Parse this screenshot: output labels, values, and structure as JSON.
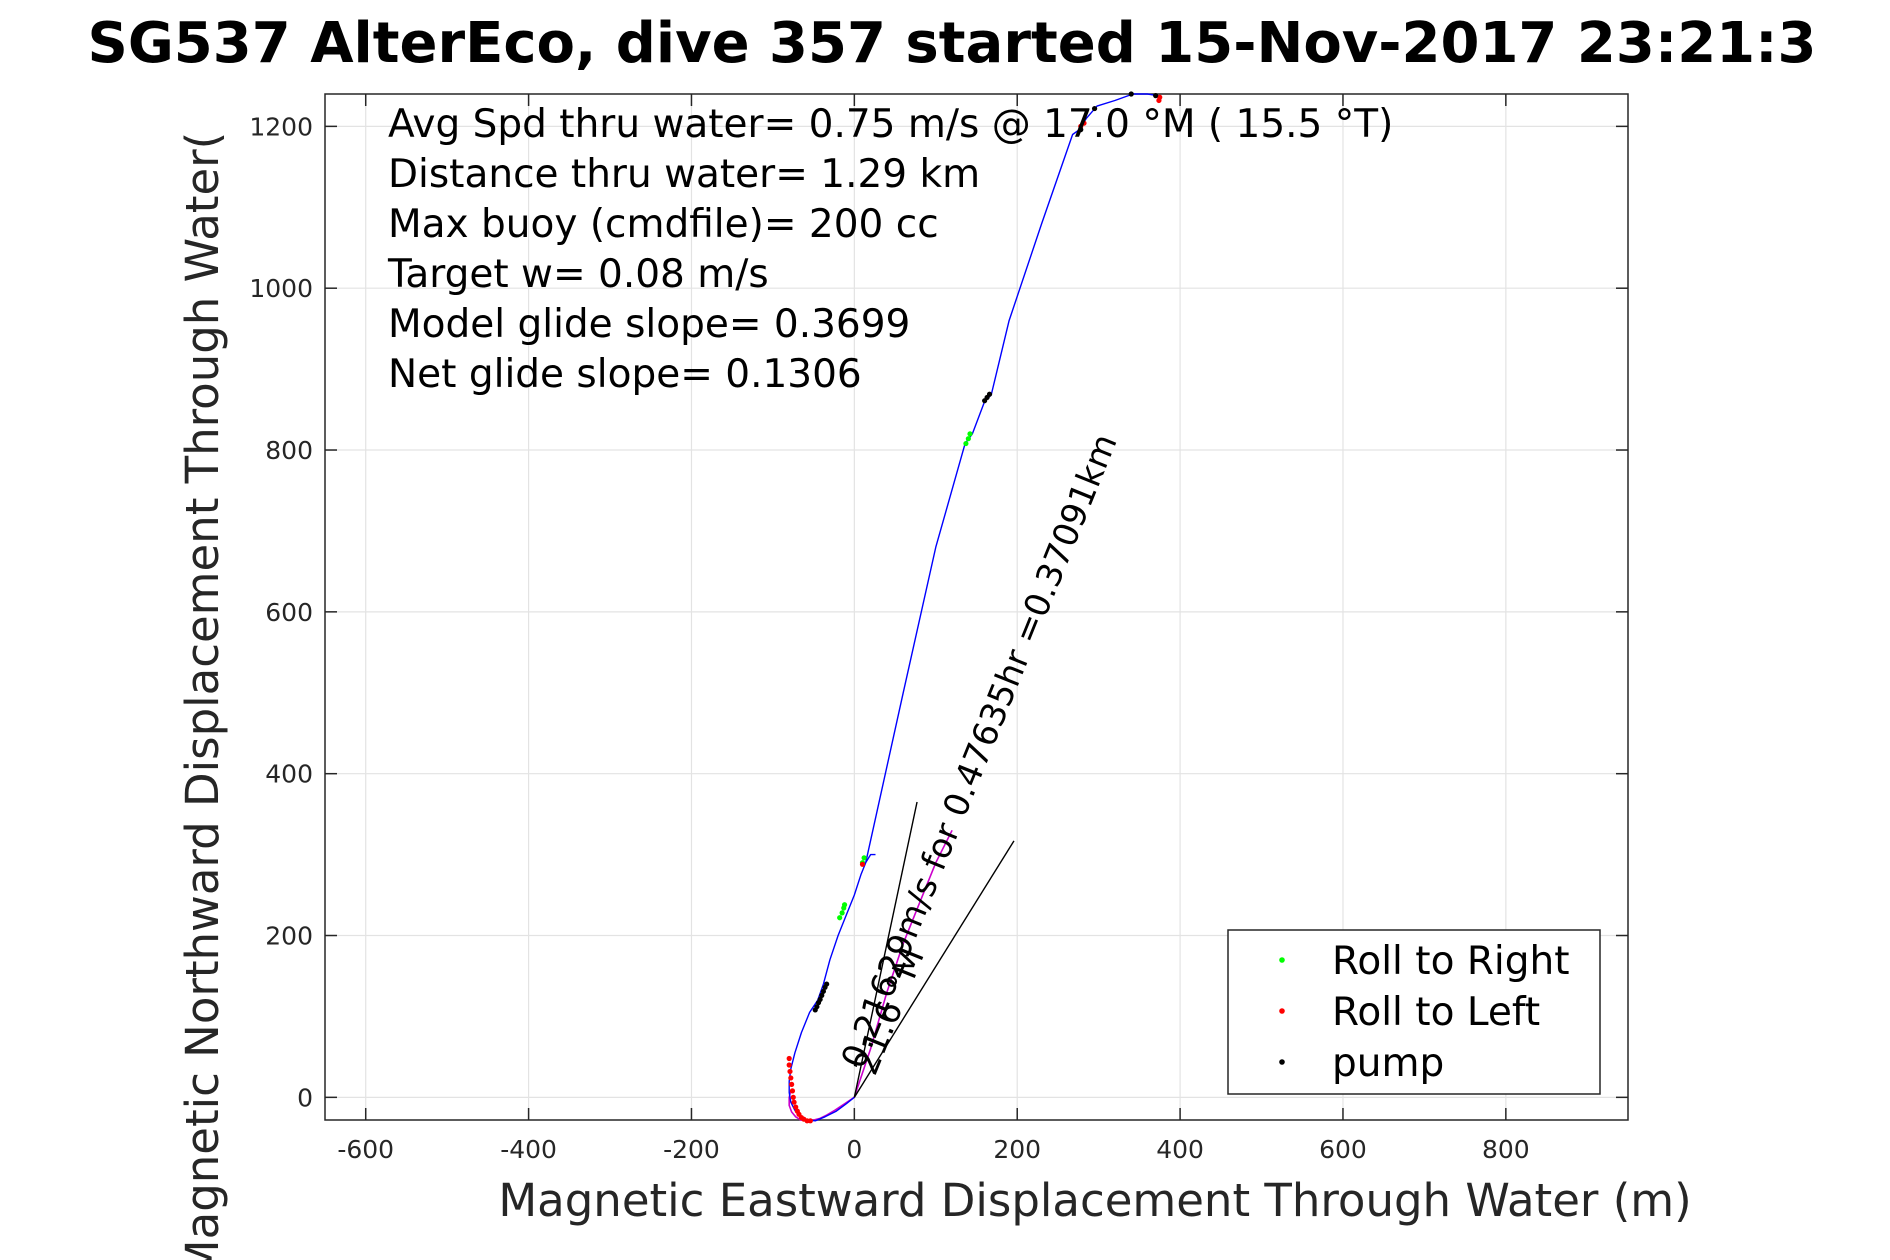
{
  "chart_data": {
    "type": "scatter",
    "title": "SG537 AlterEco, dive 357 started 15-Nov-2017 23:21:3",
    "xlabel": "Magnetic Eastward Displacement Through Water (m)",
    "ylabel": "Magnetic Northward Displacement Through Water(",
    "xlim": [
      -650,
      950
    ],
    "ylim": [
      -28,
      1240
    ],
    "x_ticks": [
      -600,
      -400,
      -200,
      0,
      200,
      400,
      600,
      800
    ],
    "y_ticks": [
      0,
      200,
      400,
      600,
      800,
      1000,
      1200
    ],
    "grid": true,
    "annotations": [
      "Avg Spd thru water=  0.75 m/s @  17.0 °M ( 15.5 °T)",
      "Distance thru water=  1.29 km",
      "Max buoy (cmdfile)= 200 cc",
      "Target w= 0.08 m/s",
      "Model glide slope= 0.3699",
      "Net glide slope= 0.1306"
    ],
    "rotated_labels": [
      {
        "text": "21.6 °M",
        "x": 25,
        "y": 25,
        "angle_deg": 68
      },
      {
        "text": "0.21629m/s for 0.47635hr =0.37091km",
        "x": 10,
        "y": 33,
        "angle_deg": 68
      }
    ],
    "legend": {
      "placement": "bottom-right",
      "entries": [
        {
          "label": "Roll to Right",
          "color": "#00ff00"
        },
        {
          "label": "Roll to Left",
          "color": "#ff0000"
        },
        {
          "label": "pump",
          "color": "#000000"
        }
      ]
    },
    "track": {
      "color": "#0000ff",
      "x": [
        0,
        -10,
        -22,
        -36,
        -48,
        -58,
        -66,
        -73,
        -78,
        -80,
        -80,
        -78,
        -73,
        -65,
        -55,
        -45,
        -38,
        -30,
        -20,
        -10,
        0,
        8,
        14,
        20,
        26
      ],
      "y": [
        0,
        -8,
        -17,
        -24,
        -29,
        -28,
        -24,
        -16,
        -6,
        6,
        20,
        35,
        55,
        80,
        105,
        120,
        140,
        170,
        200,
        225,
        250,
        275,
        290,
        300,
        300
      ]
    },
    "track_magenta": {
      "color": "#cc00cc",
      "x": [
        -78,
        -80,
        -80,
        -77,
        -72,
        -66,
        -58,
        -50,
        -42,
        -34,
        -24,
        -12,
        0,
        20,
        40,
        60,
        80,
        100,
        120
      ],
      "y": [
        8,
        0,
        -10,
        -18,
        -24,
        -28,
        -29,
        -28,
        -26,
        -22,
        -16,
        -8,
        0,
        60,
        130,
        190,
        240,
        290,
        330
      ]
    },
    "track_upper": {
      "color": "#0000ff",
      "x": [
        14,
        60,
        100,
        136,
        145,
        160,
        168,
        190,
        230,
        268,
        275,
        285,
        298,
        320,
        342,
        360,
        372
      ],
      "y": [
        290,
        500,
        680,
        808,
        820,
        860,
        868,
        960,
        1080,
        1190,
        1195,
        1210,
        1225,
        1232,
        1240,
        1240,
        1238
      ]
    },
    "vector_lines": [
      {
        "x": [
          0,
          77
        ],
        "y": [
          0,
          365
        ],
        "color": "#000000"
      },
      {
        "x": [
          0,
          196
        ],
        "y": [
          0,
          317
        ],
        "color": "#000000"
      }
    ],
    "points_roll_right": {
      "x": [
        -18,
        -15,
        -13,
        -12,
        10,
        12,
        137,
        140,
        142
      ],
      "y": [
        222,
        228,
        234,
        238,
        290,
        296,
        808,
        814,
        820
      ]
    },
    "points_roll_left": {
      "x": [
        -80,
        -80,
        -79,
        -78,
        -77,
        -76,
        -75,
        -74,
        -72,
        -70,
        -68,
        -65,
        -62,
        -58,
        -54,
        10,
        278,
        282,
        374,
        375
      ],
      "y": [
        48,
        40,
        32,
        24,
        16,
        8,
        0,
        -6,
        -12,
        -17,
        -21,
        -25,
        -27,
        -29,
        -29,
        288,
        1200,
        1204,
        1232,
        1236
      ]
    },
    "points_pump": {
      "x": [
        -48,
        -46,
        -44,
        -42,
        -40,
        -38,
        -36,
        -34,
        160,
        163,
        166,
        278,
        295,
        340,
        370
      ],
      "y": [
        108,
        112,
        117,
        121,
        126,
        131,
        136,
        140,
        861,
        865,
        869,
        1196,
        1222,
        1240,
        1238
      ]
    }
  }
}
